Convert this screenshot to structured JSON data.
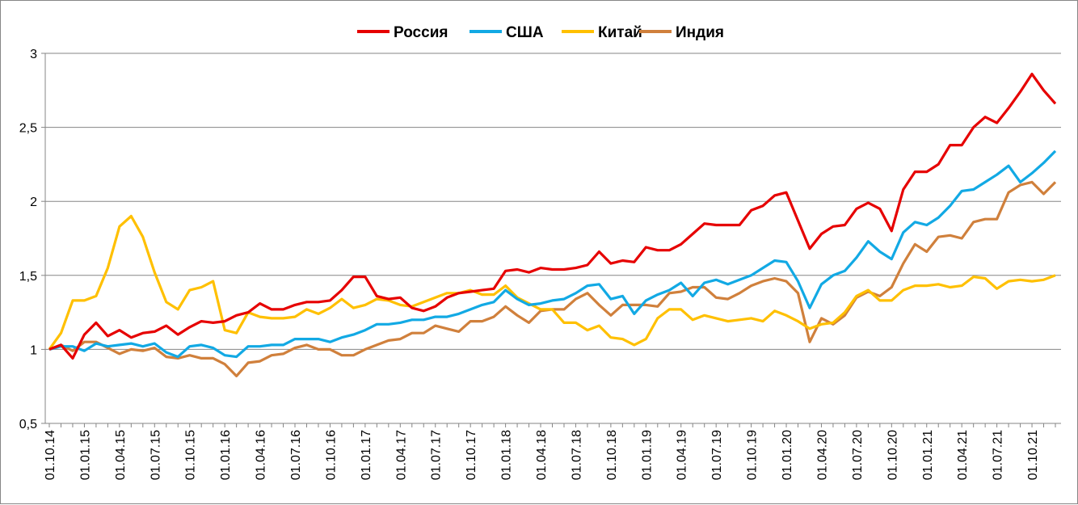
{
  "chart_data": {
    "type": "line",
    "title": "",
    "xlabel": "",
    "ylabel": "",
    "ylim": [
      0.5,
      3
    ],
    "yticks": [
      0.5,
      1,
      1.5,
      2,
      2.5,
      3
    ],
    "ytick_labels": [
      "0,5",
      "1",
      "1,5",
      "2",
      "2,5",
      "3"
    ],
    "grid": true,
    "legend_position": "top-center",
    "x_tick_labels": [
      "01.10.14",
      "01.01.15",
      "01.04.15",
      "01.07.15",
      "01.10.15",
      "01.01.16",
      "01.04.16",
      "01.07.16",
      "01.10.16",
      "01.01.17",
      "01.04.17",
      "01.07.17",
      "01.10.17",
      "01.01.18",
      "01.04.18",
      "01.07.18",
      "01.10.18",
      "01.01.19",
      "01.04.19",
      "01.07.19",
      "01.10.19",
      "01.01.20",
      "01.04.20",
      "01.07.20",
      "01.10.20",
      "01.01.21",
      "01.04.21",
      "01.07.21",
      "01.10.21"
    ],
    "x_tick_every": 3,
    "point_count": 87,
    "series": [
      {
        "name": "Россия",
        "color": "#E60000",
        "values": [
          1.0,
          1.03,
          0.94,
          1.1,
          1.18,
          1.09,
          1.13,
          1.08,
          1.11,
          1.12,
          1.16,
          1.1,
          1.15,
          1.19,
          1.18,
          1.19,
          1.23,
          1.25,
          1.31,
          1.27,
          1.27,
          1.3,
          1.32,
          1.32,
          1.33,
          1.4,
          1.49,
          1.49,
          1.36,
          1.34,
          1.35,
          1.28,
          1.26,
          1.29,
          1.35,
          1.38,
          1.39,
          1.4,
          1.41,
          1.53,
          1.54,
          1.52,
          1.55,
          1.54,
          1.54,
          1.55,
          1.57,
          1.66,
          1.58,
          1.6,
          1.59,
          1.69,
          1.67,
          1.67,
          1.71,
          1.78,
          1.85,
          1.84,
          1.84,
          1.84,
          1.94,
          1.97,
          2.04,
          2.06,
          1.87,
          1.68,
          1.78,
          1.83,
          1.84,
          1.95,
          1.99,
          1.95,
          1.8,
          2.08,
          2.2,
          2.2,
          2.25,
          2.38,
          2.38,
          2.5,
          2.57,
          2.53,
          2.63,
          2.74,
          2.86,
          2.75,
          2.66
        ]
      },
      {
        "name": "США",
        "color": "#12A9E4",
        "values": [
          1.0,
          1.02,
          1.02,
          0.99,
          1.04,
          1.02,
          1.03,
          1.04,
          1.02,
          1.04,
          0.98,
          0.95,
          1.02,
          1.03,
          1.01,
          0.96,
          0.95,
          1.02,
          1.02,
          1.03,
          1.03,
          1.07,
          1.07,
          1.07,
          1.05,
          1.08,
          1.1,
          1.13,
          1.17,
          1.17,
          1.18,
          1.2,
          1.2,
          1.22,
          1.22,
          1.24,
          1.27,
          1.3,
          1.32,
          1.4,
          1.34,
          1.3,
          1.31,
          1.33,
          1.34,
          1.38,
          1.43,
          1.44,
          1.34,
          1.36,
          1.24,
          1.33,
          1.37,
          1.4,
          1.45,
          1.36,
          1.45,
          1.47,
          1.44,
          1.47,
          1.5,
          1.55,
          1.6,
          1.59,
          1.46,
          1.28,
          1.44,
          1.5,
          1.53,
          1.62,
          1.73,
          1.66,
          1.61,
          1.79,
          1.86,
          1.84,
          1.89,
          1.97,
          2.07,
          2.08,
          2.13,
          2.18,
          2.24,
          2.13,
          2.19,
          2.26,
          2.34
        ]
      },
      {
        "name": "Китай",
        "color": "#FFC000",
        "values": [
          1.0,
          1.11,
          1.33,
          1.33,
          1.36,
          1.55,
          1.83,
          1.9,
          1.76,
          1.52,
          1.32,
          1.27,
          1.4,
          1.42,
          1.46,
          1.13,
          1.11,
          1.25,
          1.22,
          1.21,
          1.21,
          1.22,
          1.27,
          1.24,
          1.28,
          1.34,
          1.28,
          1.3,
          1.34,
          1.33,
          1.3,
          1.29,
          1.32,
          1.35,
          1.38,
          1.38,
          1.4,
          1.37,
          1.37,
          1.43,
          1.35,
          1.31,
          1.27,
          1.27,
          1.18,
          1.18,
          1.13,
          1.16,
          1.08,
          1.07,
          1.03,
          1.07,
          1.21,
          1.27,
          1.27,
          1.2,
          1.23,
          1.21,
          1.19,
          1.2,
          1.21,
          1.19,
          1.26,
          1.23,
          1.19,
          1.14,
          1.17,
          1.18,
          1.25,
          1.36,
          1.4,
          1.33,
          1.33,
          1.4,
          1.43,
          1.43,
          1.44,
          1.42,
          1.43,
          1.49,
          1.48,
          1.41,
          1.46,
          1.47,
          1.46,
          1.47,
          1.5
        ]
      },
      {
        "name": "Индия",
        "color": "#D0803C",
        "values": [
          1.0,
          1.03,
          0.99,
          1.05,
          1.05,
          1.01,
          0.97,
          1.0,
          0.99,
          1.01,
          0.95,
          0.94,
          0.96,
          0.94,
          0.94,
          0.9,
          0.82,
          0.91,
          0.92,
          0.96,
          0.97,
          1.01,
          1.03,
          1.0,
          1.0,
          0.96,
          0.96,
          1.0,
          1.03,
          1.06,
          1.07,
          1.11,
          1.11,
          1.16,
          1.14,
          1.12,
          1.19,
          1.19,
          1.22,
          1.29,
          1.23,
          1.18,
          1.26,
          1.27,
          1.27,
          1.34,
          1.38,
          1.3,
          1.23,
          1.3,
          1.3,
          1.3,
          1.29,
          1.38,
          1.39,
          1.42,
          1.42,
          1.35,
          1.34,
          1.38,
          1.43,
          1.46,
          1.48,
          1.46,
          1.38,
          1.05,
          1.21,
          1.17,
          1.23,
          1.35,
          1.39,
          1.36,
          1.42,
          1.58,
          1.71,
          1.66,
          1.76,
          1.77,
          1.75,
          1.86,
          1.88,
          1.88,
          2.06,
          2.11,
          2.13,
          2.05,
          2.13
        ]
      }
    ]
  }
}
